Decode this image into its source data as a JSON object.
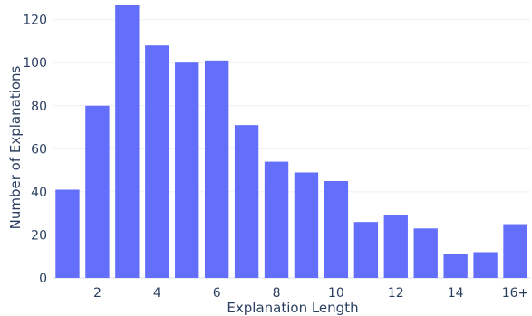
{
  "chart_data": {
    "type": "bar",
    "x": [
      1,
      2,
      3,
      4,
      5,
      6,
      7,
      8,
      9,
      10,
      11,
      12,
      13,
      14,
      15,
      16
    ],
    "values": [
      41,
      80,
      127,
      108,
      100,
      101,
      71,
      54,
      49,
      45,
      26,
      29,
      23,
      11,
      12,
      25
    ],
    "xlabel": "Explanation Length",
    "ylabel": "Number of Explanations",
    "x_ticks": [
      {
        "x": 2,
        "label": "2"
      },
      {
        "x": 4,
        "label": "4"
      },
      {
        "x": 6,
        "label": "6"
      },
      {
        "x": 8,
        "label": "8"
      },
      {
        "x": 10,
        "label": "10"
      },
      {
        "x": 12,
        "label": "12"
      },
      {
        "x": 14,
        "label": "14"
      },
      {
        "x": 16,
        "label": "16+"
      }
    ],
    "y_ticks": [
      0,
      20,
      40,
      60,
      80,
      100,
      120
    ],
    "ylim": [
      0,
      127
    ],
    "xlim": [
      0.5,
      16.5
    ],
    "grid": true,
    "bar_color": "#636efa",
    "grid_color": "#ebf0f8",
    "text_color": "#2a3f5f"
  }
}
